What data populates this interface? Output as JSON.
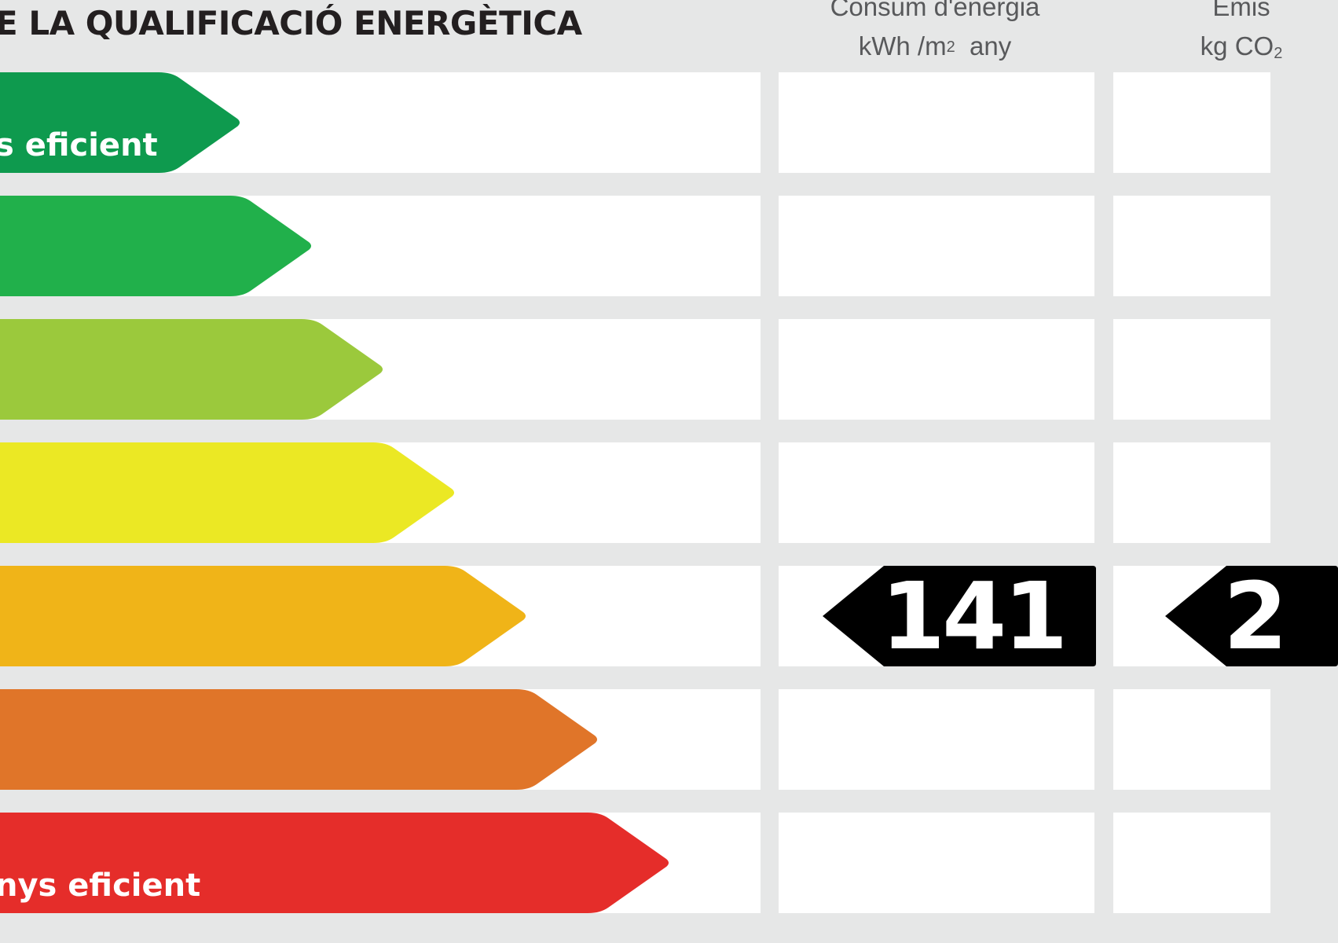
{
  "title": "E LA QUALIFICACIÓ ENERGÈTICA",
  "columns": {
    "energy": {
      "line1": "Consum d'energia",
      "unit_prefix": "kWh /m",
      "unit_sup": "2",
      "unit_suffix": "  any"
    },
    "emissions": {
      "line1": "Emis",
      "unit_prefix": "kg CO",
      "unit_sub": "2"
    }
  },
  "scale": [
    {
      "color": "#0e9a4e",
      "label": "s eficient"
    },
    {
      "color": "#21b04b",
      "label": ""
    },
    {
      "color": "#9bc93c",
      "label": ""
    },
    {
      "color": "#ebe824",
      "label": ""
    },
    {
      "color": "#f0b418",
      "label": ""
    },
    {
      "color": "#e07529",
      "label": ""
    },
    {
      "color": "#e52d2a",
      "label": "nys eficient"
    }
  ],
  "rating": {
    "row_index": 4,
    "energy_value": "141",
    "emissions_value": "2"
  },
  "indicator_color": "#000000"
}
